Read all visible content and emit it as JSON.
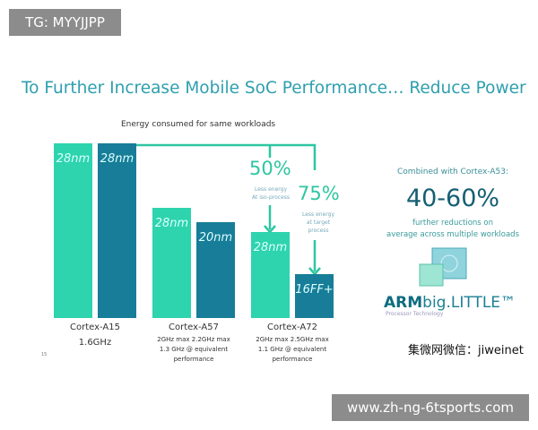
{
  "watermark_top": "TG: MYYJJPP",
  "watermark_bottom": "www.zh-ng-6tsports.com",
  "wechat": "集微网微信：jiweinet",
  "slide": {
    "title": "To Further Increase Mobile SoC Performance… Reduce Power",
    "page_number": "15",
    "right": {
      "combined": "Combined with Cortex-A53:",
      "big": "40-60%",
      "further1": "further reductions on",
      "further2": "average across multiple workloads",
      "brand_arm": "ARM",
      "brand_rest": "big.LITTLE™",
      "tagline": "Processor Technology"
    }
  },
  "colors": {
    "light": "#2dd4ae",
    "dark": "#177d98",
    "title": "#2e9fae"
  },
  "chart_data": {
    "type": "bar",
    "title": "Energy consumed for same workloads",
    "categories": [
      "Cortex-A15",
      "Cortex-A57",
      "Cortex-A72"
    ],
    "category_notes": [
      [
        "1.6GHz"
      ],
      [
        "2GHz max  2.2GHz max",
        "1.3 GHz @ equivalent",
        "performance"
      ],
      [
        "2GHz max  2.5GHz max",
        "1.1 GHz @ equivalent",
        "performance"
      ]
    ],
    "series": [
      {
        "values": [
          100,
          63,
          49
        ],
        "labels": [
          "28nm",
          "28nm",
          "28nm"
        ],
        "color": "#2dd4ae"
      },
      {
        "values": [
          100,
          55,
          25
        ],
        "labels": [
          "28nm",
          "20nm",
          "16FF+"
        ],
        "color": "#177d98"
      }
    ],
    "annotations": [
      {
        "value": "50%",
        "text1": "Less energy",
        "text2": "At iso-process"
      },
      {
        "value": "75%",
        "text1": "Less energy",
        "text2": "at target",
        "text3": "process"
      }
    ],
    "grid": false
  }
}
